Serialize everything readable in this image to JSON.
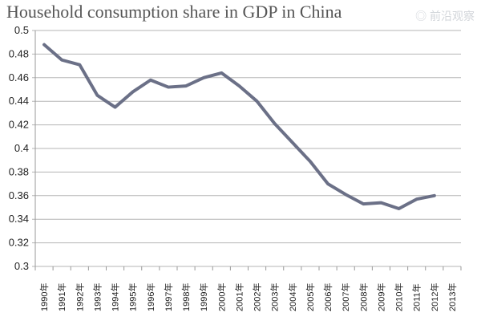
{
  "chart_data": {
    "type": "line",
    "title": "Household consumption share in GDP in China",
    "xlabel": "",
    "ylabel": "",
    "categories": [
      "1990年",
      "1991年",
      "1992年",
      "1993年",
      "1994年",
      "1995年",
      "1996年",
      "1997年",
      "1998年",
      "1999年",
      "2000年",
      "2001年",
      "2002年",
      "2003年",
      "2004年",
      "2005年",
      "2006年",
      "2007年",
      "2008年",
      "2009年",
      "2010年",
      "2011年",
      "2012年",
      "2013年"
    ],
    "series": [
      {
        "values": [
          0.488,
          0.475,
          0.471,
          0.445,
          0.435,
          0.448,
          0.458,
          0.452,
          0.453,
          0.46,
          0.464,
          0.453,
          0.44,
          0.421,
          0.405,
          0.389,
          0.37,
          0.361,
          0.353,
          0.354,
          0.349,
          0.357,
          0.36,
          null
        ]
      }
    ],
    "ylim": [
      0.3,
      0.5
    ],
    "yticks": [
      "0.3",
      "0.32",
      "0.34",
      "0.36",
      "0.38",
      "0.4",
      "0.42",
      "0.44",
      "0.46",
      "0.48",
      "0.5"
    ],
    "grid": true,
    "legend": "none",
    "line_color": "#6b7087",
    "grid_color": "#b5b5b5"
  },
  "watermark": "前沿观察"
}
